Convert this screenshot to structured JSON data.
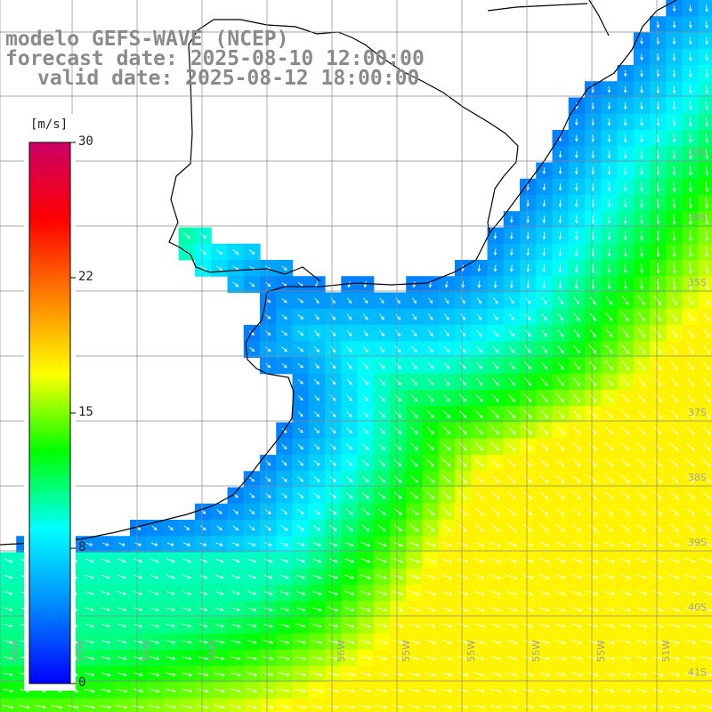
{
  "title": {
    "model": "modelo GEFS-WAVE (NCEP)",
    "forecast": "forecast date: 2025-08-10 12:00:00",
    "valid": "valid date: 2025-08-12 18:00:00"
  },
  "colorbar": {
    "unit": "[m/s]",
    "range": [
      0,
      30
    ],
    "tick_labels": [
      "30",
      "22",
      "15",
      "8",
      "0"
    ],
    "tick_values": [
      30,
      22.5,
      15,
      7.5,
      0
    ],
    "colors": [
      "#0000ff",
      "#0088ff",
      "#00ffff",
      "#00ff00",
      "#ffff00",
      "#ff8000",
      "#ff0000",
      "#cc0066"
    ]
  },
  "map": {
    "variable": "wind speed and direction",
    "lat_labels": [
      "33S",
      "34S",
      "35S",
      "37S",
      "38S",
      "39S",
      "40S",
      "41S"
    ],
    "lat_values": [
      -33,
      -34,
      -35,
      -37,
      -38,
      -39,
      -40,
      -41
    ],
    "lon_labels": [
      "56W",
      "55W",
      "55W",
      "56W",
      "56W",
      "55W",
      "55W",
      "55W",
      "55W",
      "51W"
    ],
    "land_color": "#ffffff",
    "grid_color": "#8a8a8a",
    "coast_color": "#000000",
    "arrow_color": "#ffffff"
  }
}
